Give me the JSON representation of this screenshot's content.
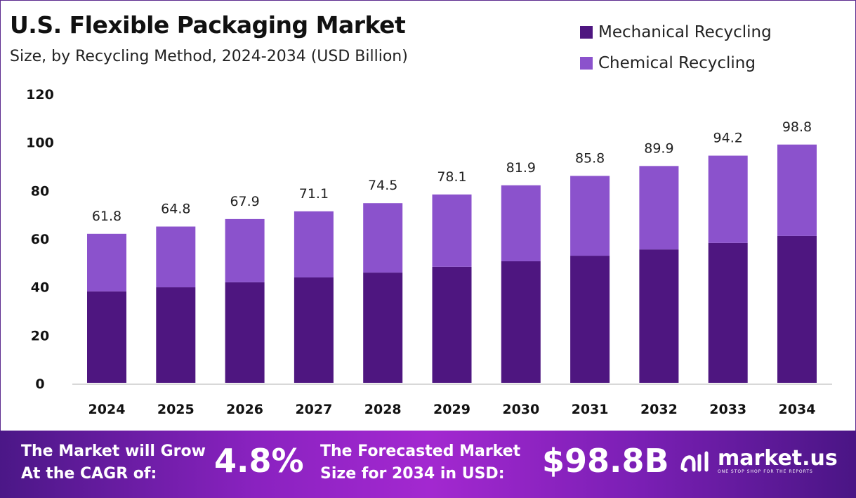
{
  "chart_data": {
    "type": "bar",
    "stacked": true,
    "title": "U.S. Flexible Packaging Market",
    "subtitle": "Size, by Recycling Method, 2024-2034 (USD Billion)",
    "categories": [
      "2024",
      "2025",
      "2026",
      "2027",
      "2028",
      "2029",
      "2030",
      "2031",
      "2032",
      "2033",
      "2034"
    ],
    "series": [
      {
        "name": "Mechanical Recycling",
        "color": "#4e1680",
        "values": [
          37.9,
          39.6,
          41.7,
          43.7,
          45.7,
          48.1,
          50.4,
          52.7,
          55.3,
          58.0,
          60.9
        ]
      },
      {
        "name": "Chemical Recycling",
        "color": "#8b52cc",
        "values": [
          23.9,
          25.2,
          26.2,
          27.4,
          28.8,
          30.0,
          31.5,
          33.1,
          34.6,
          36.2,
          37.9
        ]
      }
    ],
    "totals": [
      "61.8",
      "64.8",
      "67.9",
      "71.1",
      "74.5",
      "78.1",
      "81.9",
      "85.8",
      "89.9",
      "94.2",
      "98.8"
    ],
    "yticks": [
      "0",
      "20",
      "40",
      "60",
      "80",
      "100",
      "120"
    ],
    "ylim": [
      0,
      120
    ],
    "xlabel": "",
    "ylabel": "",
    "grid": false,
    "legend": "top-right"
  },
  "footer": {
    "cagr_label_1": "The Market will Grow",
    "cagr_label_2": "At the CAGR of:",
    "cagr_value": "4.8%",
    "size_label_1": "The Forecasted Market",
    "size_label_2": "Size for 2034 in USD:",
    "size_value": "$98.8B",
    "logo_name": "market.us",
    "logo_tagline": "ONE STOP SHOP FOR THE REPORTS"
  }
}
